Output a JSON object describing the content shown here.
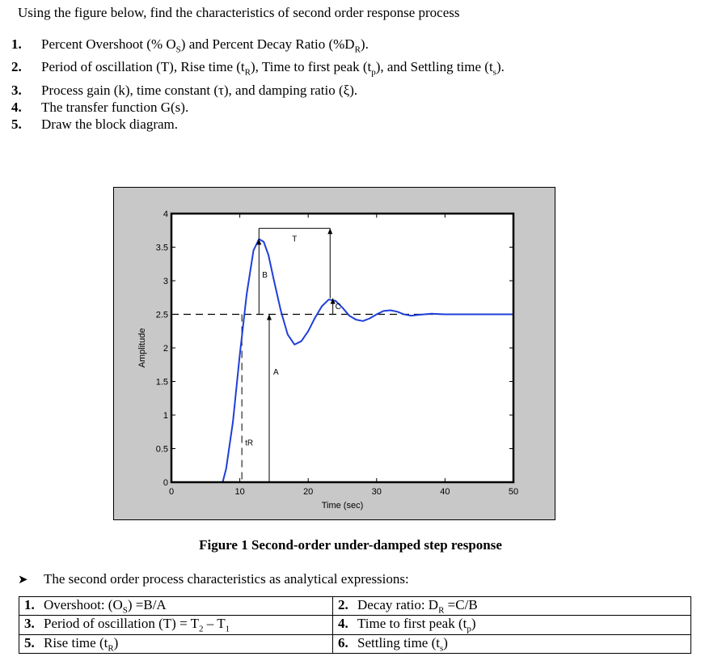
{
  "intro": "Using the figure below, find the characteristics of second order response process",
  "questions": [
    {
      "num": "1.",
      "text": "Percent Overshoot (% O",
      "sub": "S",
      "rest": ") and Percent Decay Ratio (%D",
      "sub2": "R",
      "rest2": ")."
    },
    {
      "num": "2.",
      "text": "Period of oscillation (T), Rise time (t",
      "sub": "R",
      "rest": "), Time to first peak (t",
      "sub2": "p",
      "rest2": "), and Settling time (t",
      "sub3": "s",
      "rest3": ")."
    },
    {
      "num": "3.",
      "text": "Process gain (k), time constant (τ), and damping ratio (ξ)."
    },
    {
      "num": "4.",
      "text": "The transfer function G(s)."
    },
    {
      "num": "5.",
      "text": "Draw the block diagram."
    }
  ],
  "figure_caption": "Figure 1 Second-order under-damped step response",
  "bullet_text": "The second order process characteristics as analytical expressions:",
  "table": {
    "rows": [
      [
        {
          "num": "1.",
          "pre": "Overshoot: (O",
          "sub": "S",
          "post": ") =B/A"
        },
        {
          "num": "2.",
          "pre": "Decay ratio: D",
          "sub": "R",
          "post": " =C/B"
        }
      ],
      [
        {
          "num": "3.",
          "pre": "Period of oscillation (T) = T",
          "sub": "2",
          "post": " – T",
          "sub2": "1"
        },
        {
          "num": "4.",
          "pre": "Time to first peak (t",
          "sub": "p",
          "post": ")"
        }
      ],
      [
        {
          "num": "5.",
          "pre": "Rise time (t",
          "sub": "R",
          "post": ")"
        },
        {
          "num": "6.",
          "pre": "Settling time (t",
          "sub": "s",
          "post": ")"
        }
      ]
    ]
  },
  "chart_data": {
    "type": "line",
    "title": "",
    "xlabel": "Time (sec)",
    "ylabel": "Amplitude",
    "xlim": [
      0,
      50
    ],
    "ylim": [
      0,
      4
    ],
    "xticks": [
      "0",
      "10",
      "20",
      "30",
      "40",
      "50"
    ],
    "yticks": [
      "0",
      "0.5",
      "1",
      "1.5",
      "2",
      "2.5",
      "3",
      "3.5",
      "4"
    ],
    "steady_state": 2.5,
    "series": [
      {
        "color": "#1f3fd8",
        "x": [
          0,
          7.5,
          8,
          9,
          10,
          11,
          12,
          12.8,
          13.5,
          14.2,
          15,
          16,
          17,
          18,
          19,
          20,
          21,
          22,
          23,
          24,
          25,
          26,
          27,
          28,
          29,
          30,
          31,
          32,
          33,
          34,
          35,
          36,
          38,
          40,
          42,
          44,
          46,
          48,
          50
        ],
        "y": [
          0,
          0,
          0.2,
          0.9,
          1.9,
          2.8,
          3.45,
          3.62,
          3.58,
          3.38,
          3.0,
          2.55,
          2.2,
          2.05,
          2.1,
          2.25,
          2.45,
          2.62,
          2.72,
          2.7,
          2.6,
          2.48,
          2.42,
          2.4,
          2.44,
          2.5,
          2.55,
          2.56,
          2.54,
          2.5,
          2.48,
          2.49,
          2.51,
          2.5,
          2.5,
          2.5,
          2.5,
          2.5,
          2.5
        ]
      }
    ],
    "annotations": [
      "T",
      "B",
      "C",
      "A",
      "tR"
    ]
  }
}
